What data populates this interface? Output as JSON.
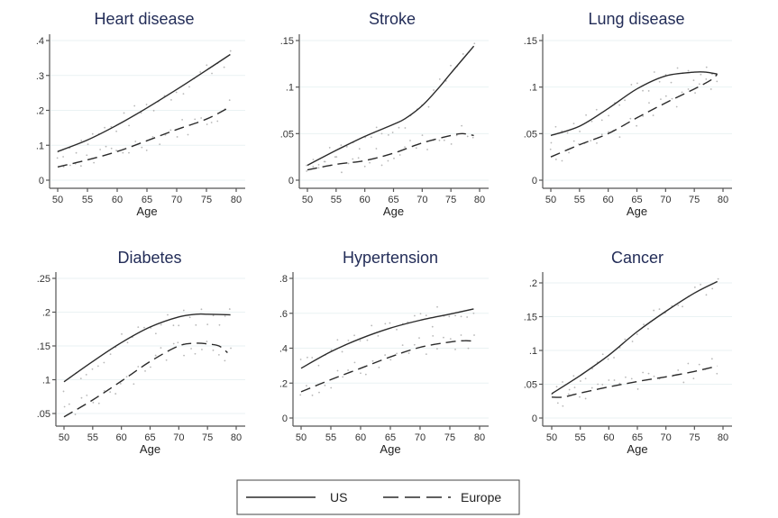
{
  "legend": {
    "entries": [
      {
        "name": "US",
        "style": "solid"
      },
      {
        "name": "Europe",
        "style": "dashed"
      }
    ]
  },
  "chart_data": [
    {
      "type": "line",
      "title": "Heart disease",
      "xlabel": "Age",
      "ylabel": "",
      "xlim": [
        50,
        80
      ],
      "ylim": [
        0,
        0.4
      ],
      "xticks": [
        50,
        55,
        60,
        65,
        70,
        75,
        80
      ],
      "yticks": [
        0,
        0.1,
        0.2,
        0.3,
        0.4
      ],
      "yticklabels": [
        "0",
        ".1",
        ".2",
        ".3",
        ".4"
      ],
      "grid": true,
      "series": [
        {
          "name": "US",
          "x": [
            50,
            55,
            60,
            65,
            70,
            75,
            79
          ],
          "values": [
            0.082,
            0.115,
            0.158,
            0.207,
            0.26,
            0.315,
            0.36
          ]
        },
        {
          "name": "Europe",
          "x": [
            50,
            55,
            60,
            65,
            70,
            75,
            79
          ],
          "values": [
            0.038,
            0.058,
            0.082,
            0.113,
            0.145,
            0.175,
            0.21
          ]
        }
      ]
    },
    {
      "type": "line",
      "title": "Stroke",
      "xlabel": "Age",
      "ylabel": "",
      "xlim": [
        50,
        80
      ],
      "ylim": [
        0,
        0.15
      ],
      "xticks": [
        50,
        55,
        60,
        65,
        70,
        75,
        80
      ],
      "yticks": [
        0,
        0.05,
        0.1,
        0.15
      ],
      "yticklabels": [
        "0",
        ".05",
        ".1",
        ".15"
      ],
      "grid": true,
      "series": [
        {
          "name": "US",
          "x": [
            50,
            55,
            60,
            65,
            67,
            70,
            73,
            75,
            79
          ],
          "values": [
            0.016,
            0.032,
            0.047,
            0.06,
            0.066,
            0.08,
            0.1,
            0.115,
            0.144
          ]
        },
        {
          "name": "Europe",
          "x": [
            50,
            55,
            60,
            65,
            70,
            75,
            77,
            79
          ],
          "values": [
            0.011,
            0.017,
            0.021,
            0.029,
            0.04,
            0.048,
            0.05,
            0.048
          ]
        }
      ]
    },
    {
      "type": "line",
      "title": "Lung disease",
      "xlabel": "Age",
      "ylabel": "",
      "xlim": [
        50,
        80
      ],
      "ylim": [
        0,
        0.15
      ],
      "xticks": [
        50,
        55,
        60,
        65,
        70,
        75,
        80
      ],
      "yticks": [
        0,
        0.05,
        0.1,
        0.15
      ],
      "yticklabels": [
        "0",
        ".05",
        ".1",
        ".15"
      ],
      "grid": true,
      "series": [
        {
          "name": "US",
          "x": [
            50,
            55,
            60,
            65,
            70,
            75,
            77,
            79
          ],
          "values": [
            0.048,
            0.058,
            0.077,
            0.098,
            0.112,
            0.116,
            0.116,
            0.114
          ]
        },
        {
          "name": "Europe",
          "x": [
            50,
            55,
            60,
            65,
            70,
            75,
            78,
            79
          ],
          "values": [
            0.025,
            0.038,
            0.05,
            0.067,
            0.083,
            0.098,
            0.108,
            0.114
          ]
        }
      ]
    },
    {
      "type": "line",
      "title": "Diabetes",
      "xlabel": "Age",
      "ylabel": "",
      "xlim": [
        50,
        80
      ],
      "ylim": [
        0.03,
        0.26
      ],
      "xticks": [
        50,
        55,
        60,
        65,
        70,
        75,
        80
      ],
      "yticks": [
        0.05,
        0.1,
        0.15,
        0.2,
        0.25
      ],
      "yticklabels": [
        ".05",
        ".1",
        ".15",
        ".2",
        ".25"
      ],
      "grid": true,
      "series": [
        {
          "name": "US",
          "x": [
            50,
            55,
            60,
            65,
            70,
            73,
            75,
            79
          ],
          "values": [
            0.097,
            0.127,
            0.155,
            0.178,
            0.193,
            0.197,
            0.197,
            0.196
          ]
        },
        {
          "name": "Europe",
          "x": [
            50,
            55,
            60,
            65,
            70,
            73,
            75,
            77,
            78.5
          ],
          "values": [
            0.045,
            0.07,
            0.098,
            0.127,
            0.15,
            0.154,
            0.153,
            0.15,
            0.14
          ]
        }
      ]
    },
    {
      "type": "line",
      "title": "Hypertension",
      "xlabel": "Age",
      "ylabel": "",
      "xlim": [
        50,
        80
      ],
      "ylim": [
        0,
        0.8
      ],
      "xticks": [
        50,
        55,
        60,
        65,
        70,
        75,
        80
      ],
      "yticks": [
        0,
        0.2,
        0.4,
        0.6,
        0.8
      ],
      "yticklabels": [
        "0",
        ".2",
        ".4",
        ".6",
        ".8"
      ],
      "grid": true,
      "series": [
        {
          "name": "US",
          "x": [
            50,
            55,
            60,
            65,
            70,
            75,
            79
          ],
          "values": [
            0.285,
            0.38,
            0.455,
            0.515,
            0.56,
            0.595,
            0.625
          ]
        },
        {
          "name": "Europe",
          "x": [
            50,
            55,
            60,
            65,
            70,
            75,
            77.5,
            79
          ],
          "values": [
            0.15,
            0.22,
            0.285,
            0.35,
            0.405,
            0.435,
            0.443,
            0.44
          ]
        }
      ]
    },
    {
      "type": "line",
      "title": "Cancer",
      "xlabel": "Age",
      "ylabel": "",
      "xlim": [
        50,
        80
      ],
      "ylim": [
        0,
        0.2
      ],
      "xticks": [
        50,
        55,
        60,
        65,
        70,
        75,
        80
      ],
      "yticks": [
        0,
        0.05,
        0.1,
        0.15,
        0.2
      ],
      "yticklabels": [
        "0",
        ".05",
        ".1",
        ".15",
        ".2"
      ],
      "grid": true,
      "series": [
        {
          "name": "US",
          "x": [
            50,
            55,
            60,
            65,
            70,
            75,
            79
          ],
          "values": [
            0.036,
            0.063,
            0.093,
            0.128,
            0.158,
            0.185,
            0.202
          ]
        },
        {
          "name": "Europe",
          "x": [
            50,
            52,
            55,
            60,
            65,
            70,
            75,
            79
          ],
          "values": [
            0.031,
            0.031,
            0.037,
            0.046,
            0.054,
            0.061,
            0.069,
            0.077
          ]
        }
      ]
    }
  ]
}
